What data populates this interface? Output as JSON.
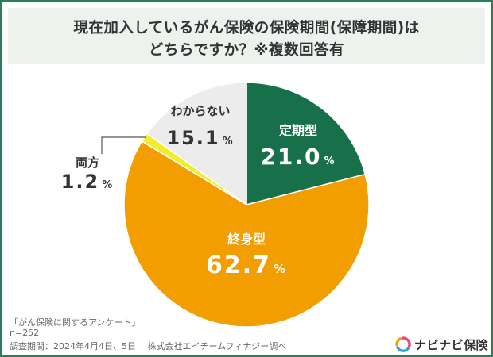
{
  "title": {
    "line1": "現在加入しているがん保険の保険期間(保障期間)は",
    "line2": "どちらですか？※複数回答有"
  },
  "chart_data": {
    "type": "pie",
    "title": "現在加入しているがん保険の保険期間(保障期間)はどちらですか？※複数回答有",
    "slices": [
      {
        "label": "定期型",
        "value": 21.0,
        "display": "21.0",
        "color": "#18704a",
        "text_color": "#ffffff"
      },
      {
        "label": "終身型",
        "value": 62.7,
        "display": "62.7",
        "color": "#f29d00",
        "text_color": "#ffffff"
      },
      {
        "label": "両方",
        "value": 1.2,
        "display": "1.2",
        "color": "#f3ec2c",
        "text_color": "#333333"
      },
      {
        "label": "わからない",
        "value": 15.1,
        "display": "15.1",
        "color": "#ececec",
        "text_color": "#333333"
      }
    ],
    "unit": "%",
    "start": "12 o'clock",
    "direction": "clockwise"
  },
  "footer": {
    "survey_name": "「がん保険に関するアンケート」",
    "sample_size": "n=252",
    "period": "調査期間：2024年4月4日、5日　 株式会社エイチームフィナジー調べ"
  },
  "logo": {
    "text": "ナビナビ保険",
    "colors": [
      "#e94c7a",
      "#36a3db",
      "#f29d00"
    ]
  }
}
